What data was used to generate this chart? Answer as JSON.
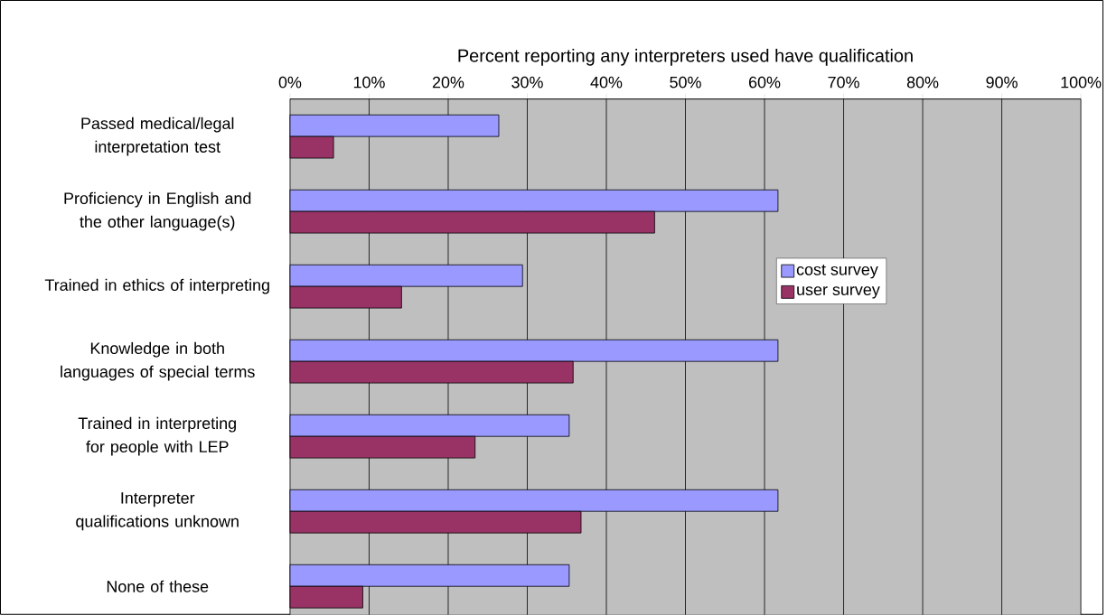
{
  "chart_data": {
    "type": "bar",
    "orientation": "horizontal",
    "xlabel": "Percent reporting any interpreters used have qualification",
    "categories": [
      "Passed medical/legal interpretation test",
      "Proficiency in English and the other language(s)",
      "Trained in ethics of interpreting",
      "Knowledge in both languages of special terms",
      "Trained in interpreting for people with LEP",
      "Interpreter qualifications unknown",
      "None of these"
    ],
    "series": [
      {
        "name": "cost survey",
        "color": "#9999ff",
        "values": [
          26.4,
          61.7,
          29.4,
          61.7,
          35.3,
          61.7,
          35.3
        ]
      },
      {
        "name": "user survey",
        "color": "#993366",
        "values": [
          5.5,
          46.1,
          14.1,
          35.8,
          23.4,
          36.8,
          9.2
        ]
      }
    ],
    "xlim": [
      0,
      100
    ],
    "xticks": [
      {
        "value": 0,
        "label": "0%"
      },
      {
        "value": 10,
        "label": "10%"
      },
      {
        "value": 20,
        "label": "20%"
      },
      {
        "value": 30,
        "label": "30%"
      },
      {
        "value": 40,
        "label": "40%"
      },
      {
        "value": 50,
        "label": "50%"
      },
      {
        "value": 60,
        "label": "60%"
      },
      {
        "value": 70,
        "label": "70%"
      },
      {
        "value": 80,
        "label": "80%"
      },
      {
        "value": 90,
        "label": "90%"
      },
      {
        "value": 100,
        "label": "100%"
      }
    ],
    "grid": "x",
    "legend": "right"
  }
}
